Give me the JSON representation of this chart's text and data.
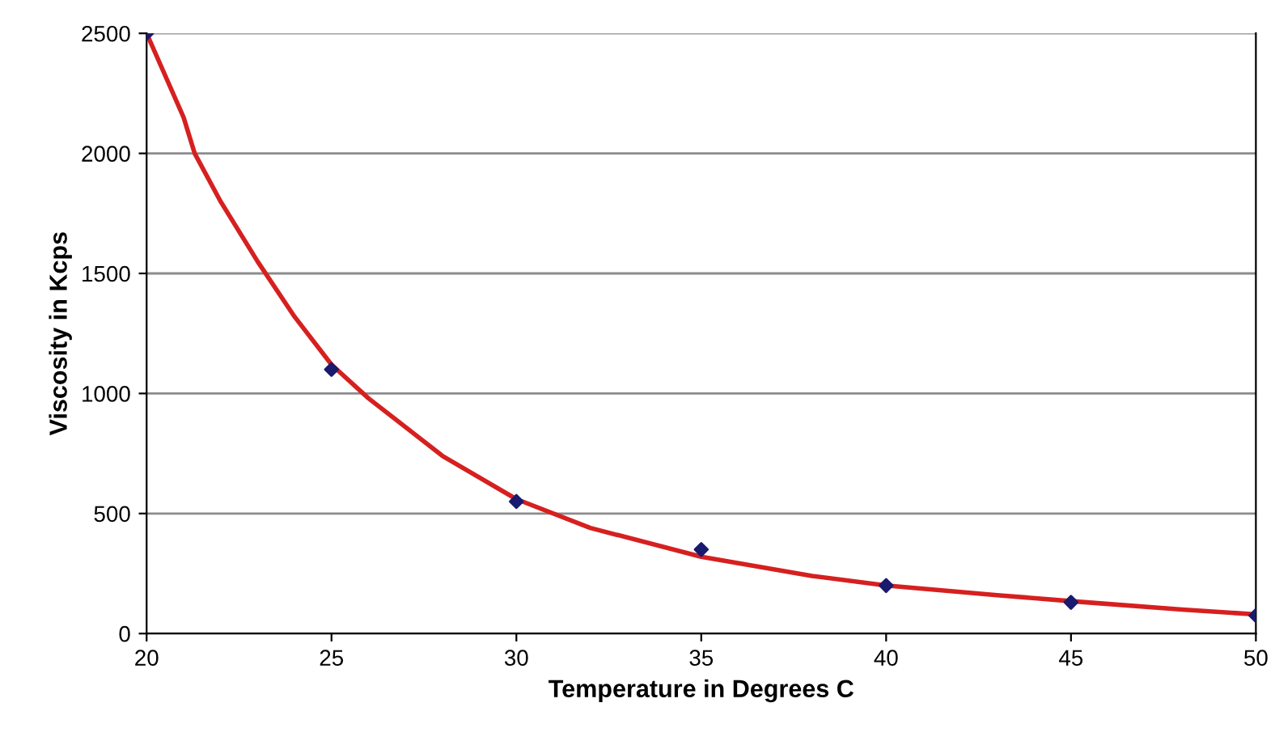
{
  "chart_data": {
    "type": "scatter",
    "xlabel": "Temperature in Degrees C",
    "ylabel": "Viscosity in Kcps",
    "xlim": [
      20,
      50
    ],
    "xticks": [
      20,
      25,
      30,
      35,
      40,
      45,
      50
    ],
    "ylim": [
      0,
      2500
    ],
    "yticks": [
      0,
      500,
      1000,
      1500,
      2000,
      2500
    ],
    "grid": "y",
    "series": [
      {
        "marker": "diamond",
        "color": "#1a1a6e",
        "x": [
          20,
          25,
          30,
          35,
          40,
          45,
          50
        ],
        "values": [
          2500,
          1100,
          550,
          350,
          200,
          130,
          75
        ]
      },
      {
        "type": "line",
        "color": "#d62020",
        "line_style": "solid",
        "marker": "none",
        "x": [
          20,
          21,
          21.3,
          22,
          23,
          24,
          25,
          26,
          28,
          30,
          32,
          35,
          38,
          40,
          43,
          45,
          48,
          50
        ],
        "values": [
          2500,
          2150,
          2000,
          1800,
          1550,
          1320,
          1120,
          980,
          740,
          560,
          440,
          320,
          240,
          200,
          160,
          135,
          100,
          80
        ]
      }
    ]
  }
}
